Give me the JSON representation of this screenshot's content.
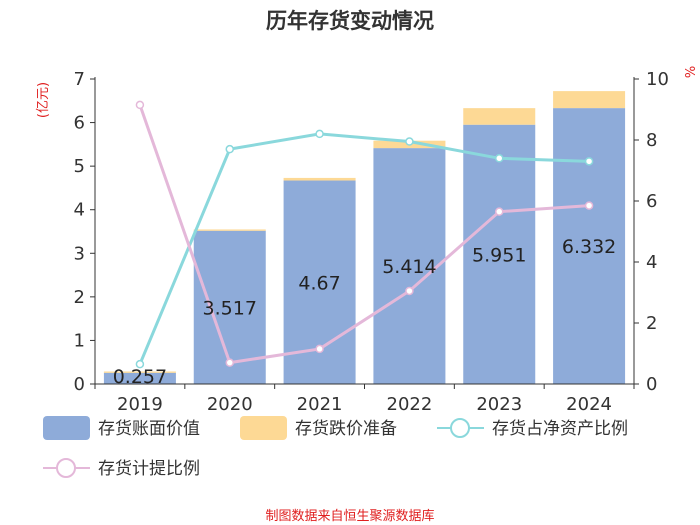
{
  "title": "历年存货变动情况",
  "source": "制图数据来自恒生聚源数据库",
  "colors": {
    "book_value": "#8eabd9",
    "impairment": "#fdd995",
    "net_asset_ratio": "#8ad8dc",
    "provision_ratio": "#e4b8d9",
    "unit_red": "#e02020",
    "axis": "#333333"
  },
  "chart_data": {
    "type": "bar",
    "title": "历年存货变动情况",
    "categories": [
      "2019",
      "2020",
      "2021",
      "2022",
      "2023",
      "2024"
    ],
    "y_left": {
      "unit": "(亿元)",
      "ylim": [
        0,
        7
      ],
      "ticks": [
        "0",
        "1",
        "2",
        "3",
        "4",
        "5",
        "6",
        "7"
      ]
    },
    "y_right": {
      "unit": "%",
      "ylim": [
        0,
        10
      ],
      "ticks": [
        "0",
        "2",
        "4",
        "6",
        "8",
        "10"
      ]
    },
    "series": [
      {
        "name": "存货账面价值",
        "type": "bar",
        "stack": "inventory",
        "axis": "left",
        "values": [
          0.257,
          3.517,
          4.67,
          5.414,
          5.951,
          6.332
        ],
        "labels": [
          "0.257",
          "3.517",
          "4.67",
          "5.414",
          "5.951",
          "6.332"
        ]
      },
      {
        "name": "存货跌价准备",
        "type": "bar",
        "stack": "inventory",
        "axis": "left",
        "values": [
          0.03,
          0.03,
          0.06,
          0.17,
          0.38,
          0.39
        ]
      },
      {
        "name": "存货占净资产比例",
        "type": "line",
        "axis": "right",
        "values": [
          0.65,
          7.7,
          8.2,
          7.95,
          7.4,
          7.3
        ]
      },
      {
        "name": "存货计提比例",
        "type": "line",
        "axis": "right",
        "values": [
          9.15,
          0.7,
          1.15,
          3.05,
          5.65,
          5.85
        ]
      }
    ],
    "grid": false,
    "legend_position": "bottom"
  }
}
